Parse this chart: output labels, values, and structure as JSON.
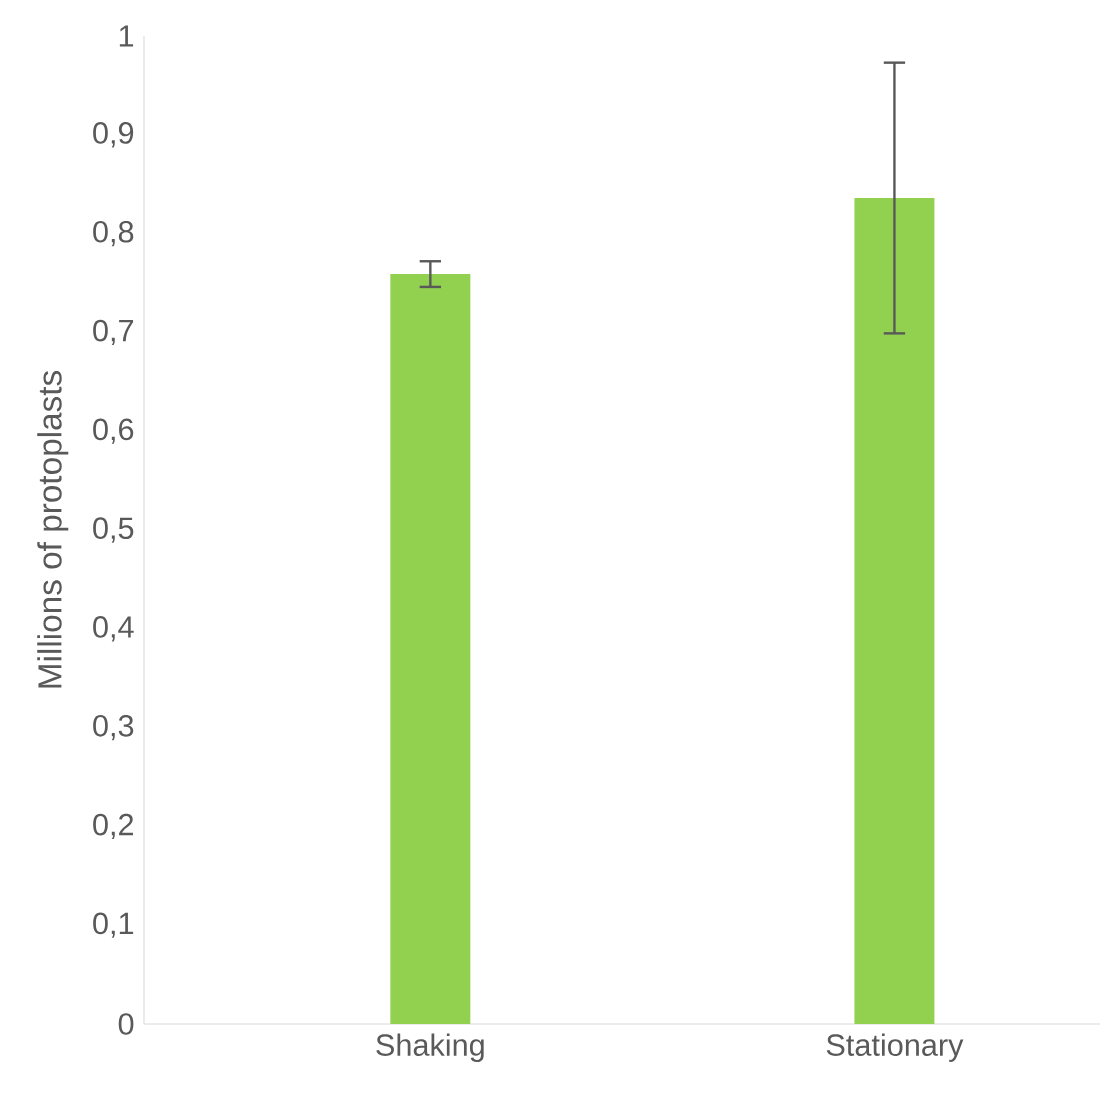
{
  "chart_data": {
    "type": "bar",
    "ylabel": "Millions of protoplasts",
    "categories": [
      "Shaking",
      "Stationary"
    ],
    "values": [
      0.759,
      0.836
    ],
    "errors": [
      0.013,
      0.137
    ],
    "color": "#92d050",
    "ylim": [
      0,
      1
    ],
    "yticks": [
      0,
      {
        "value": 0.1,
        "label": "0,1"
      },
      {
        "value": 0.2,
        "label": "0,2"
      },
      {
        "value": 0.3,
        "label": "0,3"
      },
      {
        "value": 0.4,
        "label": "0,4"
      },
      {
        "value": 0.5,
        "label": "0,5"
      },
      {
        "value": 0.6,
        "label": "0,6"
      },
      {
        "value": 0.7,
        "label": "0,7"
      },
      {
        "value": 0.8,
        "label": "0,8"
      },
      {
        "value": 0.9,
        "label": "0,9"
      },
      1
    ],
    "grid": false
  }
}
